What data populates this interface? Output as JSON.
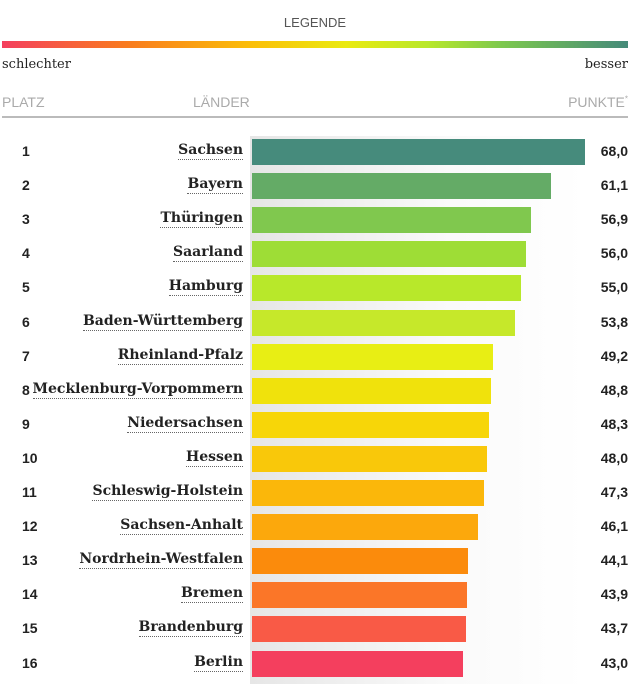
{
  "legend": {
    "title": "LEGENDE",
    "worse": "schlechter",
    "better": "besser"
  },
  "headers": {
    "rank": "PLATZ",
    "state": "LÄNDER",
    "points": "PUNKTE",
    "footnote": "*"
  },
  "chart_data": {
    "type": "bar",
    "orientation": "horizontal",
    "xlim": [
      0,
      68
    ],
    "categories": [
      "Sachsen",
      "Bayern",
      "Thüringen",
      "Saarland",
      "Hamburg",
      "Baden-Württemberg",
      "Rheinland-Pfalz",
      "Mecklenburg-Vorpommern",
      "Niedersachsen",
      "Hessen",
      "Schleswig-Holstein",
      "Sachsen-Anhalt",
      "Nordrhein-Westfalen",
      "Bremen",
      "Brandenburg",
      "Berlin"
    ],
    "ranks": [
      "1",
      "2",
      "3",
      "4",
      "5",
      "6",
      "7",
      "8",
      "9",
      "10",
      "11",
      "12",
      "13",
      "14",
      "15",
      "16"
    ],
    "values": [
      68.0,
      61.1,
      56.9,
      56.0,
      55.0,
      53.8,
      49.2,
      48.8,
      48.3,
      48.0,
      47.3,
      46.1,
      44.1,
      43.9,
      43.7,
      43.0
    ],
    "labels": [
      "68,0",
      "61,1",
      "56,9",
      "56,0",
      "55,0",
      "53,8",
      "49,2",
      "48,8",
      "48,3",
      "48,0",
      "47,3",
      "46,1",
      "44,1",
      "43,9",
      "43,7",
      "43,0"
    ],
    "colors": [
      "#468b7c",
      "#64ab66",
      "#80c84e",
      "#9edd36",
      "#b8e82a",
      "#c6e82a",
      "#e8ee14",
      "#f0e20c",
      "#f7d608",
      "#f9c80a",
      "#fbb70a",
      "#fca80c",
      "#fb8b0c",
      "#fb7628",
      "#f95a46",
      "#f43f5e"
    ]
  }
}
